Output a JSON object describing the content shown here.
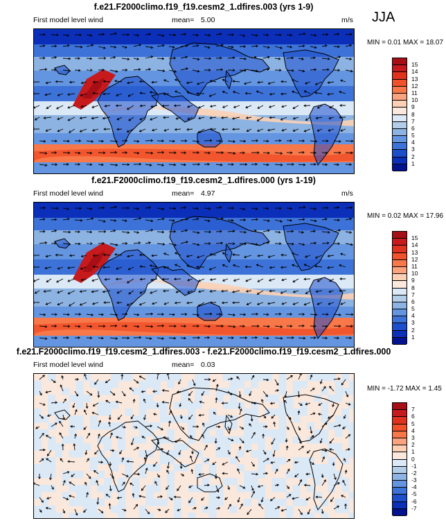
{
  "season": "JJA",
  "panels": [
    {
      "title": "f.e21.F2000climo.f19_f19.cesm2_1.dfires.003 (yrs 1-9)",
      "variable": "First model level wind",
      "mean_label": "mean=",
      "mean_value": "5.00",
      "units": "m/s",
      "minmax": "MIN =  0.01 MAX =  18.07",
      "levels": [
        "15",
        "14",
        "13",
        "12",
        "11",
        "10",
        "9",
        "8",
        "7",
        "6",
        "5",
        "4",
        "3",
        "2",
        "1"
      ],
      "colors": [
        "#a50f15",
        "#c61a1d",
        "#e0331f",
        "#f1522b",
        "#f8784a",
        "#fba37f",
        "#fcd0b4",
        "#fbe8dc",
        "#dbe8f6",
        "#b3cde9",
        "#8db3e2",
        "#6495e0",
        "#3d73d8",
        "#1d4fcc",
        "#0b2fb8",
        "#03128f"
      ]
    },
    {
      "title": "f.e21.F2000climo.f19_f19.cesm2_1.dfires.000 (yrs 1-19)",
      "variable": "First model level wind",
      "mean_label": "mean=",
      "mean_value": "4.97",
      "units": "m/s",
      "minmax": "MIN =  0.02 MAX =  17.96",
      "levels": [
        "15",
        "14",
        "13",
        "12",
        "11",
        "10",
        "9",
        "8",
        "7",
        "6",
        "5",
        "4",
        "3",
        "2",
        "1"
      ],
      "colors": [
        "#a50f15",
        "#c61a1d",
        "#e0331f",
        "#f1522b",
        "#f8784a",
        "#fba37f",
        "#fcd0b4",
        "#fbe8dc",
        "#dbe8f6",
        "#b3cde9",
        "#8db3e2",
        "#6495e0",
        "#3d73d8",
        "#1d4fcc",
        "#0b2fb8",
        "#03128f"
      ]
    },
    {
      "title": "f.e21.F2000climo.f19_f19.cesm2_1.dfires.003 - f.e21.F2000climo.f19_f19.cesm2_1.dfires.000",
      "variable": "First model level wind",
      "mean_label": "mean=",
      "mean_value": "0.03",
      "units": "",
      "minmax": "MIN =  -1.72 MAX =  1.45",
      "levels": [
        "7",
        "6",
        "5",
        "4",
        "3",
        "2",
        "1",
        "0",
        "-1",
        "-2",
        "-3",
        "-4",
        "-5",
        "-6",
        "-7"
      ],
      "colors": [
        "#a50f15",
        "#c61a1d",
        "#e0331f",
        "#f1522b",
        "#f8784a",
        "#fba37f",
        "#fcd0b4",
        "#fbe8dc",
        "#dbe8f6",
        "#b3cde9",
        "#8db3e2",
        "#6495e0",
        "#3d73d8",
        "#1d4fcc",
        "#0b2fb8",
        "#03128f"
      ]
    }
  ],
  "chart_data": [
    {
      "type": "heatmap",
      "title": "f.e21.F2000climo.f19_f19.cesm2_1.dfires.003 (yrs 1-9)",
      "variable": "First model level wind",
      "units": "m/s",
      "mean": 5.0,
      "min": 0.01,
      "max": 18.07,
      "levels": [
        1,
        2,
        3,
        4,
        5,
        6,
        7,
        8,
        9,
        10,
        11,
        12,
        13,
        14,
        15
      ],
      "overlay": "wind vectors"
    },
    {
      "type": "heatmap",
      "title": "f.e21.F2000climo.f19_f19.cesm2_1.dfires.000 (yrs 1-19)",
      "variable": "First model level wind",
      "units": "m/s",
      "mean": 4.97,
      "min": 0.02,
      "max": 17.96,
      "levels": [
        1,
        2,
        3,
        4,
        5,
        6,
        7,
        8,
        9,
        10,
        11,
        12,
        13,
        14,
        15
      ],
      "overlay": "wind vectors"
    },
    {
      "type": "heatmap",
      "title": "f.e21.F2000climo.f19_f19.cesm2_1.dfires.003 - f.e21.F2000climo.f19_f19.cesm2_1.dfires.000",
      "variable": "First model level wind",
      "mean": 0.03,
      "min": -1.72,
      "max": 1.45,
      "levels": [
        -7,
        -6,
        -5,
        -4,
        -3,
        -2,
        -1,
        0,
        1,
        2,
        3,
        4,
        5,
        6,
        7
      ],
      "overlay": "wind vectors"
    }
  ]
}
